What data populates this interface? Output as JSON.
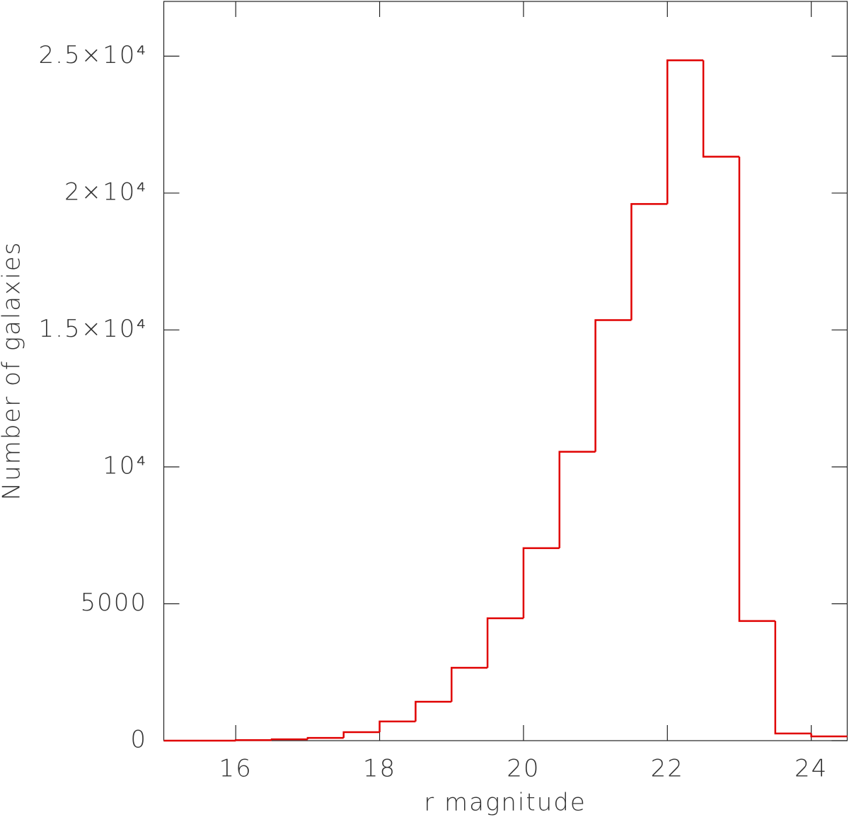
{
  "chart_data": {
    "type": "histogram",
    "xlabel": "r magnitude",
    "ylabel": "Number of galaxies",
    "bins": [
      15,
      15.5,
      16,
      16.5,
      17,
      17.5,
      18,
      18.5,
      19,
      19.5,
      20,
      20.5,
      21,
      21.5,
      22,
      22.5,
      23,
      23.5,
      24,
      24.5
    ],
    "values": [
      0,
      0,
      20,
      50,
      100,
      310,
      700,
      1420,
      2660,
      4470,
      7030,
      10550,
      15360,
      19600,
      24850,
      21330,
      4370,
      260,
      155
    ],
    "color": "#e00000",
    "xlim": [
      15,
      24.5
    ],
    "xticks": [
      16,
      18,
      20,
      22,
      24
    ],
    "ylim": [
      0,
      27000
    ],
    "yticks": [
      0,
      5000,
      {
        "value": 10000,
        "label": "10⁴"
      },
      {
        "value": 15000,
        "label": "1.5×10⁴"
      },
      {
        "value": 20000,
        "label": "2×10⁴"
      },
      {
        "value": 25000,
        "label": "2.5×10⁴"
      }
    ]
  }
}
